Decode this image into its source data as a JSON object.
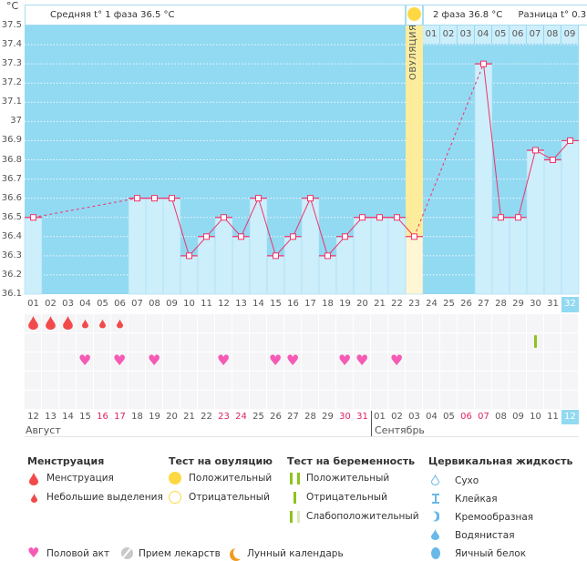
{
  "header": {
    "unit": "°C",
    "phase1": "Средняя t° 1 фаза 36.5 °C",
    "phase2": "2 фаза 36.8 °C",
    "difference": "Разница t° 0.3 °C",
    "ovulation_label": "ОВУЛЯЦИЯ"
  },
  "colors": {
    "bg_blue": "#92d9f2",
    "bar": "#cdeefb",
    "line": "#f0346a",
    "ovulation": "#fcec9c",
    "red_day": "#e0245e"
  },
  "y_ticks": [
    "37.5",
    "37.4",
    "37.3",
    "37.2",
    "37.1",
    "37",
    "36.9",
    "36.8",
    "36.7",
    "36.6",
    "36.5",
    "36.4",
    "36.3",
    "36.2",
    "36.1"
  ],
  "phase2_days": [
    "01",
    "02",
    "03",
    "04",
    "05",
    "06",
    "07",
    "08",
    "09"
  ],
  "cycle_days": [
    "01",
    "02",
    "03",
    "04",
    "05",
    "06",
    "07",
    "08",
    "09",
    "10",
    "11",
    "12",
    "13",
    "14",
    "15",
    "16",
    "17",
    "18",
    "19",
    "20",
    "21",
    "22",
    "23",
    "24",
    "25",
    "26",
    "27",
    "28",
    "29",
    "30",
    "31",
    "32"
  ],
  "temperatures": [
    36.5,
    null,
    null,
    null,
    null,
    null,
    36.6,
    36.6,
    36.6,
    36.3,
    36.4,
    36.5,
    36.4,
    36.6,
    36.3,
    36.4,
    36.6,
    36.3,
    36.4,
    36.5,
    36.5,
    36.5,
    36.4,
    null,
    null,
    null,
    37.3,
    36.5,
    36.5,
    36.85,
    36.8,
    36.9
  ],
  "ovulation_day": 23,
  "menstruation": {
    "1": "heavy",
    "2": "heavy",
    "3": "heavy",
    "4": "light",
    "5": "light",
    "6": "light"
  },
  "pregnancy_test": {
    "30": "negative"
  },
  "intercourse": [
    4,
    6,
    8,
    12,
    15,
    16,
    19,
    20,
    22
  ],
  "calendar_dates": [
    "12",
    "13",
    "14",
    "15",
    "16",
    "17",
    "18",
    "19",
    "20",
    "21",
    "22",
    "23",
    "24",
    "25",
    "26",
    "27",
    "28",
    "29",
    "30",
    "31",
    "01",
    "02",
    "03",
    "04",
    "05",
    "06",
    "07",
    "08",
    "09",
    "10",
    "11",
    "12"
  ],
  "weekend_indices": [
    4,
    5,
    11,
    12,
    18,
    19,
    25,
    26
  ],
  "months": {
    "first": "Август",
    "second": "Сентябрь"
  },
  "legend": {
    "menstruation": {
      "title": "Менструация",
      "items": [
        "Менструация",
        "Небольшие выделения"
      ]
    },
    "ovulation_test": {
      "title": "Тест на овуляцию",
      "items": [
        "Положительный",
        "Отрицательный"
      ]
    },
    "pregnancy_test": {
      "title": "Тест на беременность",
      "items": [
        "Положительный",
        "Отрицательный",
        "Слабоположительный"
      ]
    },
    "cervical_fluid": {
      "title": "Цервикальная жидкость",
      "items": [
        "Сухо",
        "Клейкая",
        "Кремообразная",
        "Водянистая",
        "Яичный белок"
      ]
    },
    "other": [
      "Половой акт",
      "Прием лекарств",
      "Лунный календарь"
    ]
  }
}
